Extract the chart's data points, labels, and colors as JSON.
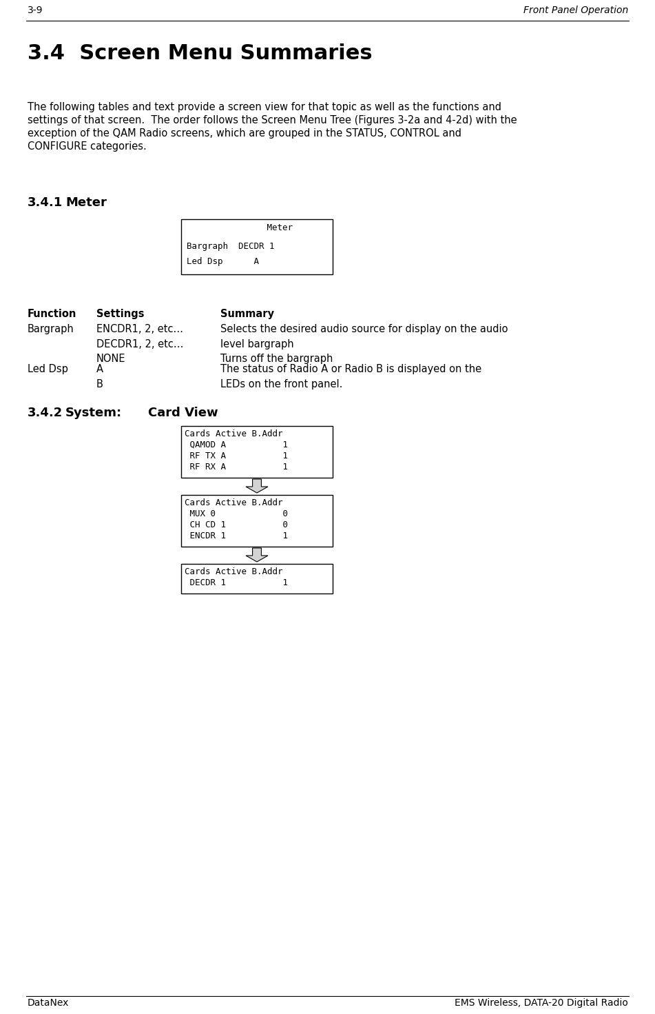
{
  "page_num": "3-9",
  "page_header_right": "Front Panel Operation",
  "footer_left": "DataNex",
  "footer_right": "EMS Wireless, DATA-20 Digital Radio",
  "title": "3.4  Screen Menu Summaries",
  "intro_text": "The following tables and text provide a screen view for that topic as well as the functions and\nsettings of that screen.  The order follows the Screen Menu Tree (Figures 3-2a and 4-2d) with the\nexception of the QAM Radio screens, which are grouped in the STATUS, CONTROL and\nCONFIGURE categories.",
  "section341_label": "3.4.1",
  "section341_label2": "Meter",
  "meter_box_lines": [
    "         Meter",
    "Bargraph  DECDR 1",
    "Led Dsp      A"
  ],
  "table_header": [
    "Function",
    "Settings",
    "Summary"
  ],
  "table_rows": [
    {
      "function": "Bargraph",
      "settings": "ENCDR1, 2, etc…\nDECDR1, 2, etc…\nNONE",
      "summary": "Selects the desired audio source for display on the audio\nlevel bargraph\nTurns off the bargraph"
    },
    {
      "function": "Led Dsp",
      "settings": "A\nB",
      "summary": "The status of Radio A or Radio B is displayed on the\nLEDs on the front panel."
    }
  ],
  "section342_label": "3.4.2",
  "section342_system": "System:",
  "section342_label2": "Card View",
  "card_box1_lines": [
    "Cards Active B.Addr",
    " QAMOD A           1",
    " RF TX A           1",
    " RF RX A           1"
  ],
  "card_box2_lines": [
    "Cards Active B.Addr",
    " MUX 0             0",
    " CH CD 1           0",
    " ENCDR 1           1"
  ],
  "card_box3_lines": [
    "Cards Active B.Addr",
    " DECDR 1           1"
  ],
  "bg_color": "#ffffff",
  "text_color": "#000000",
  "title_fontsize": 22,
  "header_fontsize": 10,
  "body_fontsize": 10.5,
  "section_fontsize": 13,
  "table_header_fontsize": 10.5,
  "table_body_fontsize": 10.5,
  "mono_fontsize": 9,
  "footer_fontsize": 10
}
